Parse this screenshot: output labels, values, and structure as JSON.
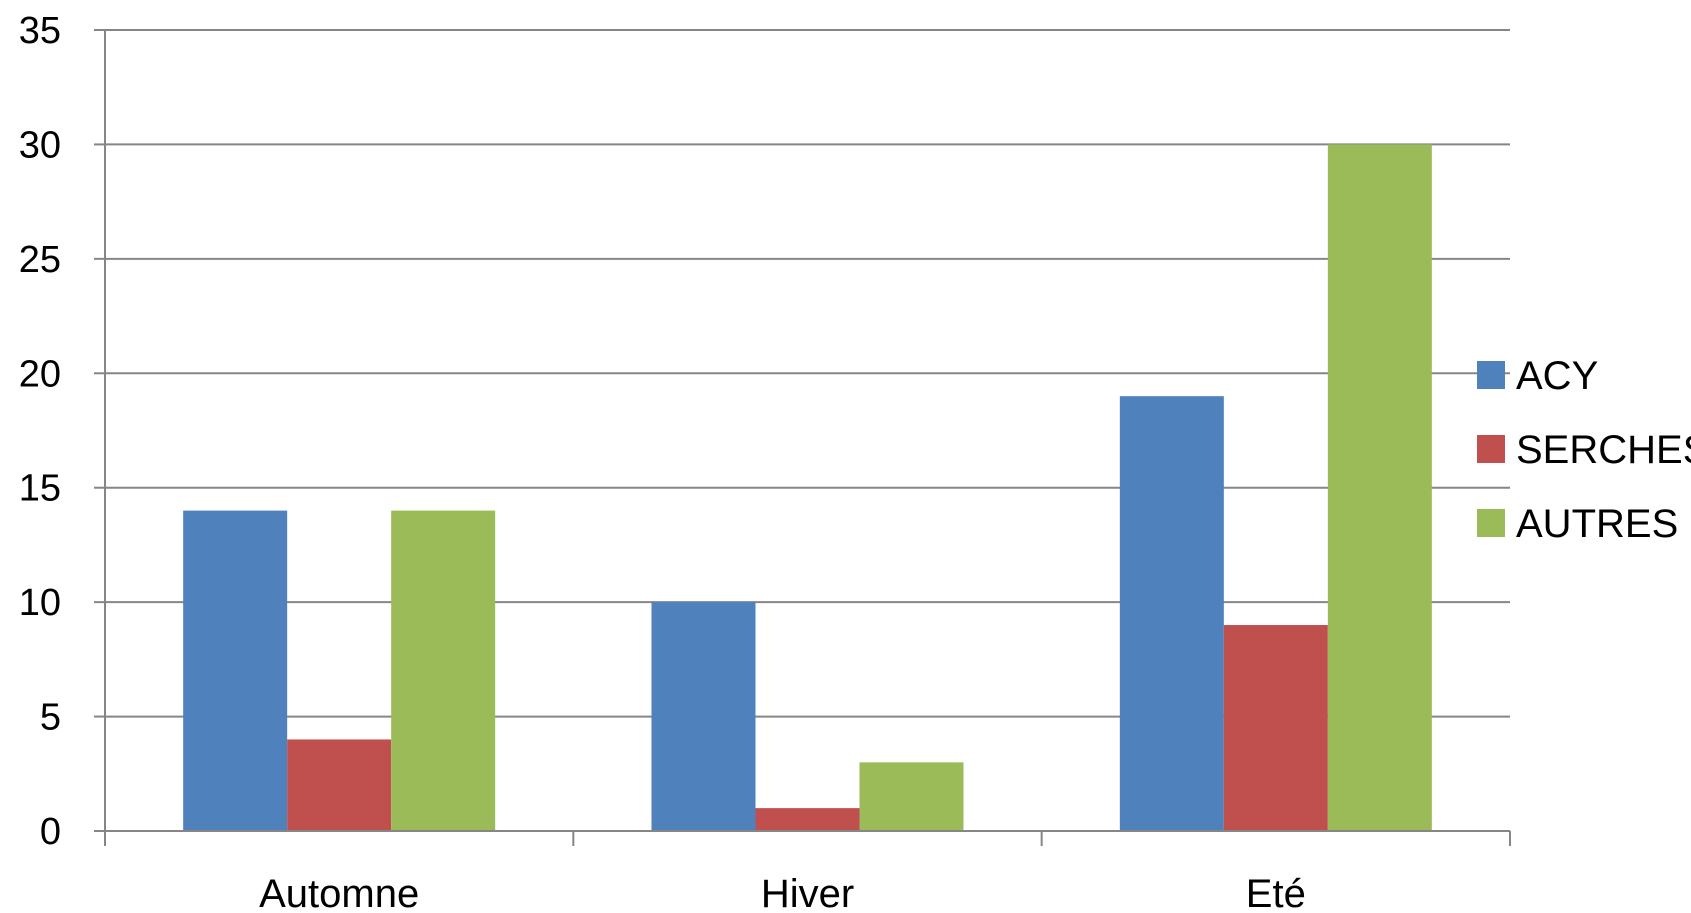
{
  "chart_data": {
    "type": "bar",
    "categories": [
      "Automne",
      "Hiver",
      "Eté"
    ],
    "series": [
      {
        "name": "ACY",
        "color": "#4F81BD",
        "values": [
          14,
          10,
          19
        ]
      },
      {
        "name": "SERCHES",
        "color": "#C0504D",
        "values": [
          4,
          1,
          9
        ]
      },
      {
        "name": "AUTRES",
        "color": "#9BBB59",
        "values": [
          14,
          3,
          30
        ]
      }
    ],
    "yticks": [
      "0",
      "5",
      "10",
      "15",
      "20",
      "25",
      "30",
      "35"
    ],
    "ylim": [
      0,
      35
    ],
    "grid": true,
    "gridline_color": "#868686",
    "legend_position": "right"
  }
}
